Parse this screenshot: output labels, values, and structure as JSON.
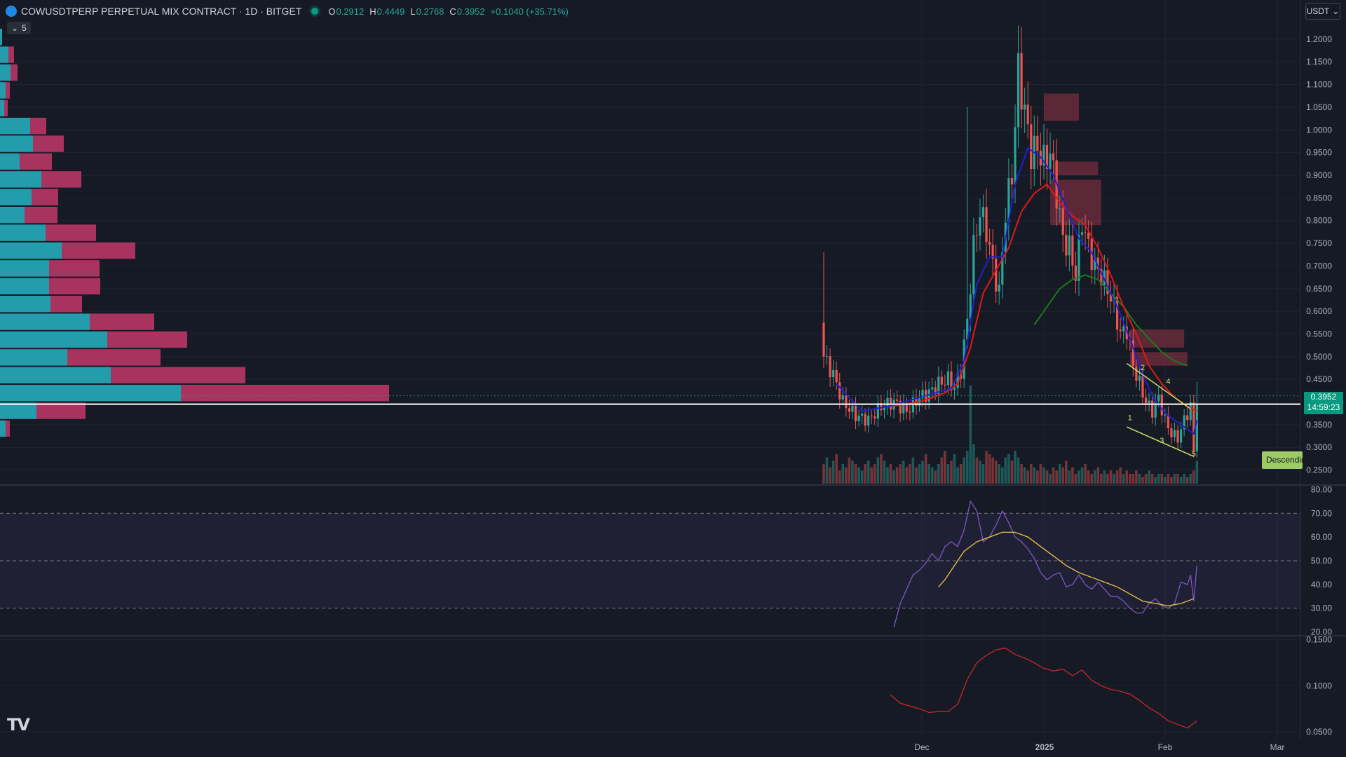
{
  "header": {
    "symbol": "COWUSDTPERP PERPETUAL MIX CONTRACT · 1D · BITGET",
    "open_label": "O",
    "open": "0.2912",
    "high_label": "H",
    "high": "0.4449",
    "low_label": "L",
    "low": "0.2768",
    "close_label": "C",
    "close": "0.3952",
    "change": "+0.1040 (+35.71%)",
    "collapse_count": "5",
    "currency": "USDT"
  },
  "price_tag": {
    "value": "0.3952",
    "countdown": "14:59:23"
  },
  "pattern_label": "Descending",
  "logo": "TV",
  "icons": {
    "logo": "coin-logo-icon",
    "status": "market-open-icon",
    "collapse": "chevron-down-icon",
    "currency_menu": "chevron-down-icon"
  },
  "colors": {
    "up": "#26a69a",
    "down": "#ef5350",
    "fast_ma": "#2020d0",
    "mid_ma": "#e01818",
    "slow_ma": "#1b7a1b",
    "rsi": "#7e57c2",
    "rsi_ma": "#e8c547",
    "volatility": "#c62828",
    "vp_up": "#26b4c4",
    "vp_down": "#c2386a",
    "pattern": "#c6e36a"
  },
  "chart_data": [
    {
      "type": "candlestick",
      "pane": "price",
      "yticks": [
        "1.2000",
        "1.1500",
        "1.1000",
        "1.0500",
        "1.0000",
        "0.9500",
        "0.9000",
        "0.8500",
        "0.8000",
        "0.7500",
        "0.7000",
        "0.6500",
        "0.6000",
        "0.5500",
        "0.5000",
        "0.4500",
        "0.3500",
        "0.3000",
        "0.2500"
      ],
      "xticks": [
        "Dec",
        "2025",
        "Feb",
        "Mar"
      ],
      "ylim": [
        0.22,
        1.24
      ],
      "ohlc_waypoints": [
        {
          "i": 0,
          "c": 0.5
        },
        {
          "i": 3,
          "c": 0.46
        },
        {
          "i": 6,
          "c": 0.4
        },
        {
          "i": 10,
          "c": 0.37
        },
        {
          "i": 14,
          "c": 0.36
        },
        {
          "i": 18,
          "c": 0.39
        },
        {
          "i": 22,
          "c": 0.4
        },
        {
          "i": 26,
          "c": 0.38
        },
        {
          "i": 30,
          "c": 0.41
        },
        {
          "i": 33,
          "c": 0.42
        },
        {
          "i": 36,
          "c": 0.44
        },
        {
          "i": 39,
          "c": 0.45
        },
        {
          "i": 41,
          "c": 0.43
        },
        {
          "i": 43,
          "c": 0.47
        },
        {
          "i": 45,
          "c": 0.58
        },
        {
          "i": 47,
          "c": 0.74
        },
        {
          "i": 49,
          "c": 0.82
        },
        {
          "i": 51,
          "c": 0.78
        },
        {
          "i": 53,
          "c": 0.7
        },
        {
          "i": 55,
          "c": 0.64
        },
        {
          "i": 57,
          "c": 0.82
        },
        {
          "i": 59,
          "c": 0.9
        },
        {
          "i": 61,
          "c": 1.13
        },
        {
          "i": 63,
          "c": 1.04
        },
        {
          "i": 65,
          "c": 0.95
        },
        {
          "i": 67,
          "c": 0.96
        },
        {
          "i": 69,
          "c": 0.93
        },
        {
          "i": 71,
          "c": 0.95
        },
        {
          "i": 73,
          "c": 0.86
        },
        {
          "i": 75,
          "c": 0.76
        },
        {
          "i": 77,
          "c": 0.74
        },
        {
          "i": 79,
          "c": 0.68
        },
        {
          "i": 81,
          "c": 0.8
        },
        {
          "i": 83,
          "c": 0.74
        },
        {
          "i": 85,
          "c": 0.7
        },
        {
          "i": 87,
          "c": 0.68
        },
        {
          "i": 89,
          "c": 0.65
        },
        {
          "i": 91,
          "c": 0.61
        },
        {
          "i": 93,
          "c": 0.55
        },
        {
          "i": 95,
          "c": 0.56
        },
        {
          "i": 97,
          "c": 0.48
        },
        {
          "i": 99,
          "c": 0.44
        },
        {
          "i": 101,
          "c": 0.4
        },
        {
          "i": 103,
          "c": 0.38
        },
        {
          "i": 105,
          "c": 0.41
        },
        {
          "i": 107,
          "c": 0.36
        },
        {
          "i": 109,
          "c": 0.33
        },
        {
          "i": 111,
          "c": 0.32
        },
        {
          "i": 113,
          "c": 0.36
        },
        {
          "i": 115,
          "c": 0.39
        },
        {
          "i": 116,
          "c": 0.29
        },
        {
          "i": 117,
          "c": 0.3952
        }
      ],
      "candle_count": 118,
      "last": {
        "open": 0.2912,
        "high": 0.4449,
        "low": 0.2768,
        "close": 0.3952
      },
      "overlays": {
        "fast_ma": [
          [
            4,
            0.44
          ],
          [
            12,
            0.38
          ],
          [
            20,
            0.39
          ],
          [
            30,
            0.41
          ],
          [
            40,
            0.43
          ],
          [
            44,
            0.49
          ],
          [
            48,
            0.66
          ],
          [
            52,
            0.72
          ],
          [
            56,
            0.72
          ],
          [
            60,
            0.88
          ],
          [
            64,
            0.96
          ],
          [
            68,
            0.94
          ],
          [
            72,
            0.9
          ],
          [
            76,
            0.83
          ],
          [
            80,
            0.76
          ],
          [
            84,
            0.73
          ],
          [
            88,
            0.67
          ],
          [
            92,
            0.61
          ],
          [
            96,
            0.54
          ],
          [
            100,
            0.46
          ],
          [
            104,
            0.4
          ],
          [
            108,
            0.37
          ],
          [
            112,
            0.35
          ],
          [
            116,
            0.33
          ],
          [
            117,
            0.36
          ]
        ],
        "mid_ma": [
          [
            20,
            0.39
          ],
          [
            30,
            0.4
          ],
          [
            38,
            0.42
          ],
          [
            42,
            0.44
          ],
          [
            46,
            0.52
          ],
          [
            50,
            0.64
          ],
          [
            54,
            0.69
          ],
          [
            58,
            0.74
          ],
          [
            62,
            0.82
          ],
          [
            66,
            0.86
          ],
          [
            70,
            0.88
          ],
          [
            74,
            0.84
          ],
          [
            78,
            0.81
          ],
          [
            82,
            0.79
          ],
          [
            86,
            0.74
          ],
          [
            90,
            0.68
          ],
          [
            94,
            0.61
          ],
          [
            98,
            0.55
          ],
          [
            102,
            0.48
          ],
          [
            106,
            0.44
          ],
          [
            110,
            0.41
          ],
          [
            114,
            0.39
          ],
          [
            117,
            0.38
          ]
        ],
        "slow_ma": [
          [
            66,
            0.57
          ],
          [
            70,
            0.61
          ],
          [
            74,
            0.65
          ],
          [
            78,
            0.67
          ],
          [
            82,
            0.68
          ],
          [
            86,
            0.67
          ],
          [
            90,
            0.64
          ],
          [
            94,
            0.61
          ],
          [
            98,
            0.57
          ],
          [
            102,
            0.54
          ],
          [
            106,
            0.51
          ],
          [
            110,
            0.49
          ],
          [
            114,
            0.48
          ]
        ],
        "resistance_zones": [
          [
            1.08,
            1.02,
            69,
            80
          ],
          [
            0.93,
            0.9,
            72,
            86
          ],
          [
            0.89,
            0.79,
            71,
            87
          ],
          [
            0.56,
            0.52,
            96,
            113
          ],
          [
            0.51,
            0.48,
            96,
            114
          ]
        ],
        "wedge": [
          [
            [
              95,
              0.485
            ],
            [
              115,
              0.385
            ]
          ],
          [
            [
              95,
              0.345
            ],
            [
              116,
              0.28
            ]
          ]
        ],
        "wave_labels": [
          "1",
          "2",
          "3",
          "4",
          "5"
        ]
      },
      "volume": [
        6,
        8,
        5,
        7,
        9,
        4,
        6,
        5,
        8,
        7,
        6,
        5,
        4,
        6,
        7,
        5,
        6,
        8,
        9,
        7,
        5,
        6,
        4,
        5,
        6,
        7,
        5,
        6,
        8,
        5,
        6,
        7,
        9,
        6,
        5,
        4,
        6,
        8,
        10,
        6,
        7,
        9,
        5,
        6,
        8,
        10,
        30,
        12,
        8,
        7,
        6,
        10,
        9,
        8,
        7,
        6,
        5,
        8,
        9,
        7,
        10,
        8,
        6,
        5,
        4,
        6,
        5,
        4,
        6,
        5,
        4,
        3,
        5,
        4,
        6,
        5,
        7,
        4,
        5,
        3,
        4,
        5,
        6,
        4,
        3,
        4,
        5,
        3,
        4,
        3,
        4,
        3,
        4,
        5,
        3,
        4,
        3,
        3,
        4,
        3,
        2,
        3,
        4,
        3,
        2,
        3,
        3,
        2,
        3,
        2,
        3,
        3,
        2,
        3,
        2,
        3,
        4,
        7
      ]
    },
    {
      "type": "line",
      "pane": "rsi",
      "yticks": [
        "80.00",
        "70.00",
        "60.00",
        "50.00",
        "40.00",
        "30.00",
        "20.00"
      ],
      "ylim": [
        19,
        81
      ],
      "bands": [
        70,
        50,
        30
      ],
      "series": [
        {
          "role": "rsi",
          "points": [
            [
              22,
              22
            ],
            [
              24,
              32
            ],
            [
              26,
              38
            ],
            [
              28,
              44
            ],
            [
              30,
              46
            ],
            [
              32,
              49
            ],
            [
              34,
              53
            ],
            [
              36,
              50
            ],
            [
              38,
              56
            ],
            [
              40,
              58
            ],
            [
              42,
              56
            ],
            [
              44,
              63
            ],
            [
              46,
              75
            ],
            [
              48,
              71
            ],
            [
              50,
              58
            ],
            [
              52,
              60
            ],
            [
              54,
              65
            ],
            [
              56,
              71
            ],
            [
              58,
              66
            ],
            [
              60,
              60
            ],
            [
              62,
              58
            ],
            [
              64,
              55
            ],
            [
              66,
              51
            ],
            [
              68,
              45
            ],
            [
              70,
              42
            ],
            [
              72,
              44
            ],
            [
              74,
              45
            ],
            [
              76,
              39
            ],
            [
              78,
              40
            ],
            [
              80,
              44
            ],
            [
              82,
              40
            ],
            [
              84,
              38
            ],
            [
              86,
              41
            ],
            [
              88,
              38
            ],
            [
              90,
              35
            ],
            [
              92,
              35
            ],
            [
              94,
              33
            ],
            [
              96,
              30
            ],
            [
              98,
              28
            ],
            [
              100,
              28
            ],
            [
              102,
              32
            ],
            [
              104,
              34
            ],
            [
              106,
              31
            ],
            [
              108,
              30
            ],
            [
              110,
              32
            ],
            [
              112,
              41
            ],
            [
              114,
              40
            ],
            [
              115,
              44
            ],
            [
              116,
              33
            ],
            [
              117,
              48
            ]
          ]
        },
        {
          "role": "rsi_ma",
          "points": [
            [
              36,
              39
            ],
            [
              38,
              42
            ],
            [
              40,
              46
            ],
            [
              44,
              54
            ],
            [
              48,
              58
            ],
            [
              52,
              60
            ],
            [
              56,
              62
            ],
            [
              60,
              62
            ],
            [
              64,
              60
            ],
            [
              68,
              56
            ],
            [
              72,
              52
            ],
            [
              76,
              48
            ],
            [
              80,
              45
            ],
            [
              84,
              43
            ],
            [
              88,
              41
            ],
            [
              92,
              39
            ],
            [
              96,
              36
            ],
            [
              100,
              33
            ],
            [
              104,
              32
            ],
            [
              108,
              31
            ],
            [
              112,
              32
            ],
            [
              116,
              34
            ]
          ]
        }
      ]
    },
    {
      "type": "line",
      "pane": "volatility",
      "yticks": [
        "0.1500",
        "0.1000",
        "0.0500"
      ],
      "ylim": [
        0.047,
        0.152
      ],
      "series": [
        {
          "role": "volatility",
          "points": [
            [
              21,
              0.09
            ],
            [
              24,
              0.081
            ],
            [
              27,
              0.078
            ],
            [
              30,
              0.075
            ],
            [
              33,
              0.071
            ],
            [
              36,
              0.072
            ],
            [
              39,
              0.072
            ],
            [
              42,
              0.08
            ],
            [
              45,
              0.107
            ],
            [
              48,
              0.125
            ],
            [
              51,
              0.133
            ],
            [
              54,
              0.139
            ],
            [
              57,
              0.141
            ],
            [
              60,
              0.134
            ],
            [
              63,
              0.13
            ],
            [
              66,
              0.125
            ],
            [
              69,
              0.119
            ],
            [
              72,
              0.116
            ],
            [
              75,
              0.118
            ],
            [
              78,
              0.111
            ],
            [
              81,
              0.117
            ],
            [
              84,
              0.106
            ],
            [
              87,
              0.1
            ],
            [
              90,
              0.096
            ],
            [
              93,
              0.094
            ],
            [
              96,
              0.091
            ],
            [
              99,
              0.084
            ],
            [
              102,
              0.076
            ],
            [
              105,
              0.07
            ],
            [
              108,
              0.062
            ],
            [
              111,
              0.058
            ],
            [
              114,
              0.054
            ],
            [
              117,
              0.062
            ]
          ]
        }
      ]
    },
    {
      "type": "bar",
      "pane": "volume_profile",
      "orientation": "horizontal",
      "bins": [
        {
          "up": 3,
          "down": 0
        },
        {
          "up": 12,
          "down": 8
        },
        {
          "up": 15,
          "down": 10
        },
        {
          "up": 8,
          "down": 6
        },
        {
          "up": 6,
          "down": 5
        },
        {
          "up": 43,
          "down": 23
        },
        {
          "up": 47,
          "down": 44
        },
        {
          "up": 28,
          "down": 46
        },
        {
          "up": 59,
          "down": 57
        },
        {
          "up": 45,
          "down": 38
        },
        {
          "up": 35,
          "down": 47
        },
        {
          "up": 65,
          "down": 72
        },
        {
          "up": 88,
          "down": 105
        },
        {
          "up": 70,
          "down": 72
        },
        {
          "up": 70,
          "down": 73
        },
        {
          "up": 72,
          "down": 45
        },
        {
          "up": 128,
          "down": 92
        },
        {
          "up": 153,
          "down": 114
        },
        {
          "up": 96,
          "down": 133
        },
        {
          "up": 158,
          "down": 192
        },
        {
          "up": 258,
          "down": 297
        },
        {
          "up": 52,
          "down": 70
        },
        {
          "up": 8,
          "down": 6
        }
      ]
    }
  ]
}
